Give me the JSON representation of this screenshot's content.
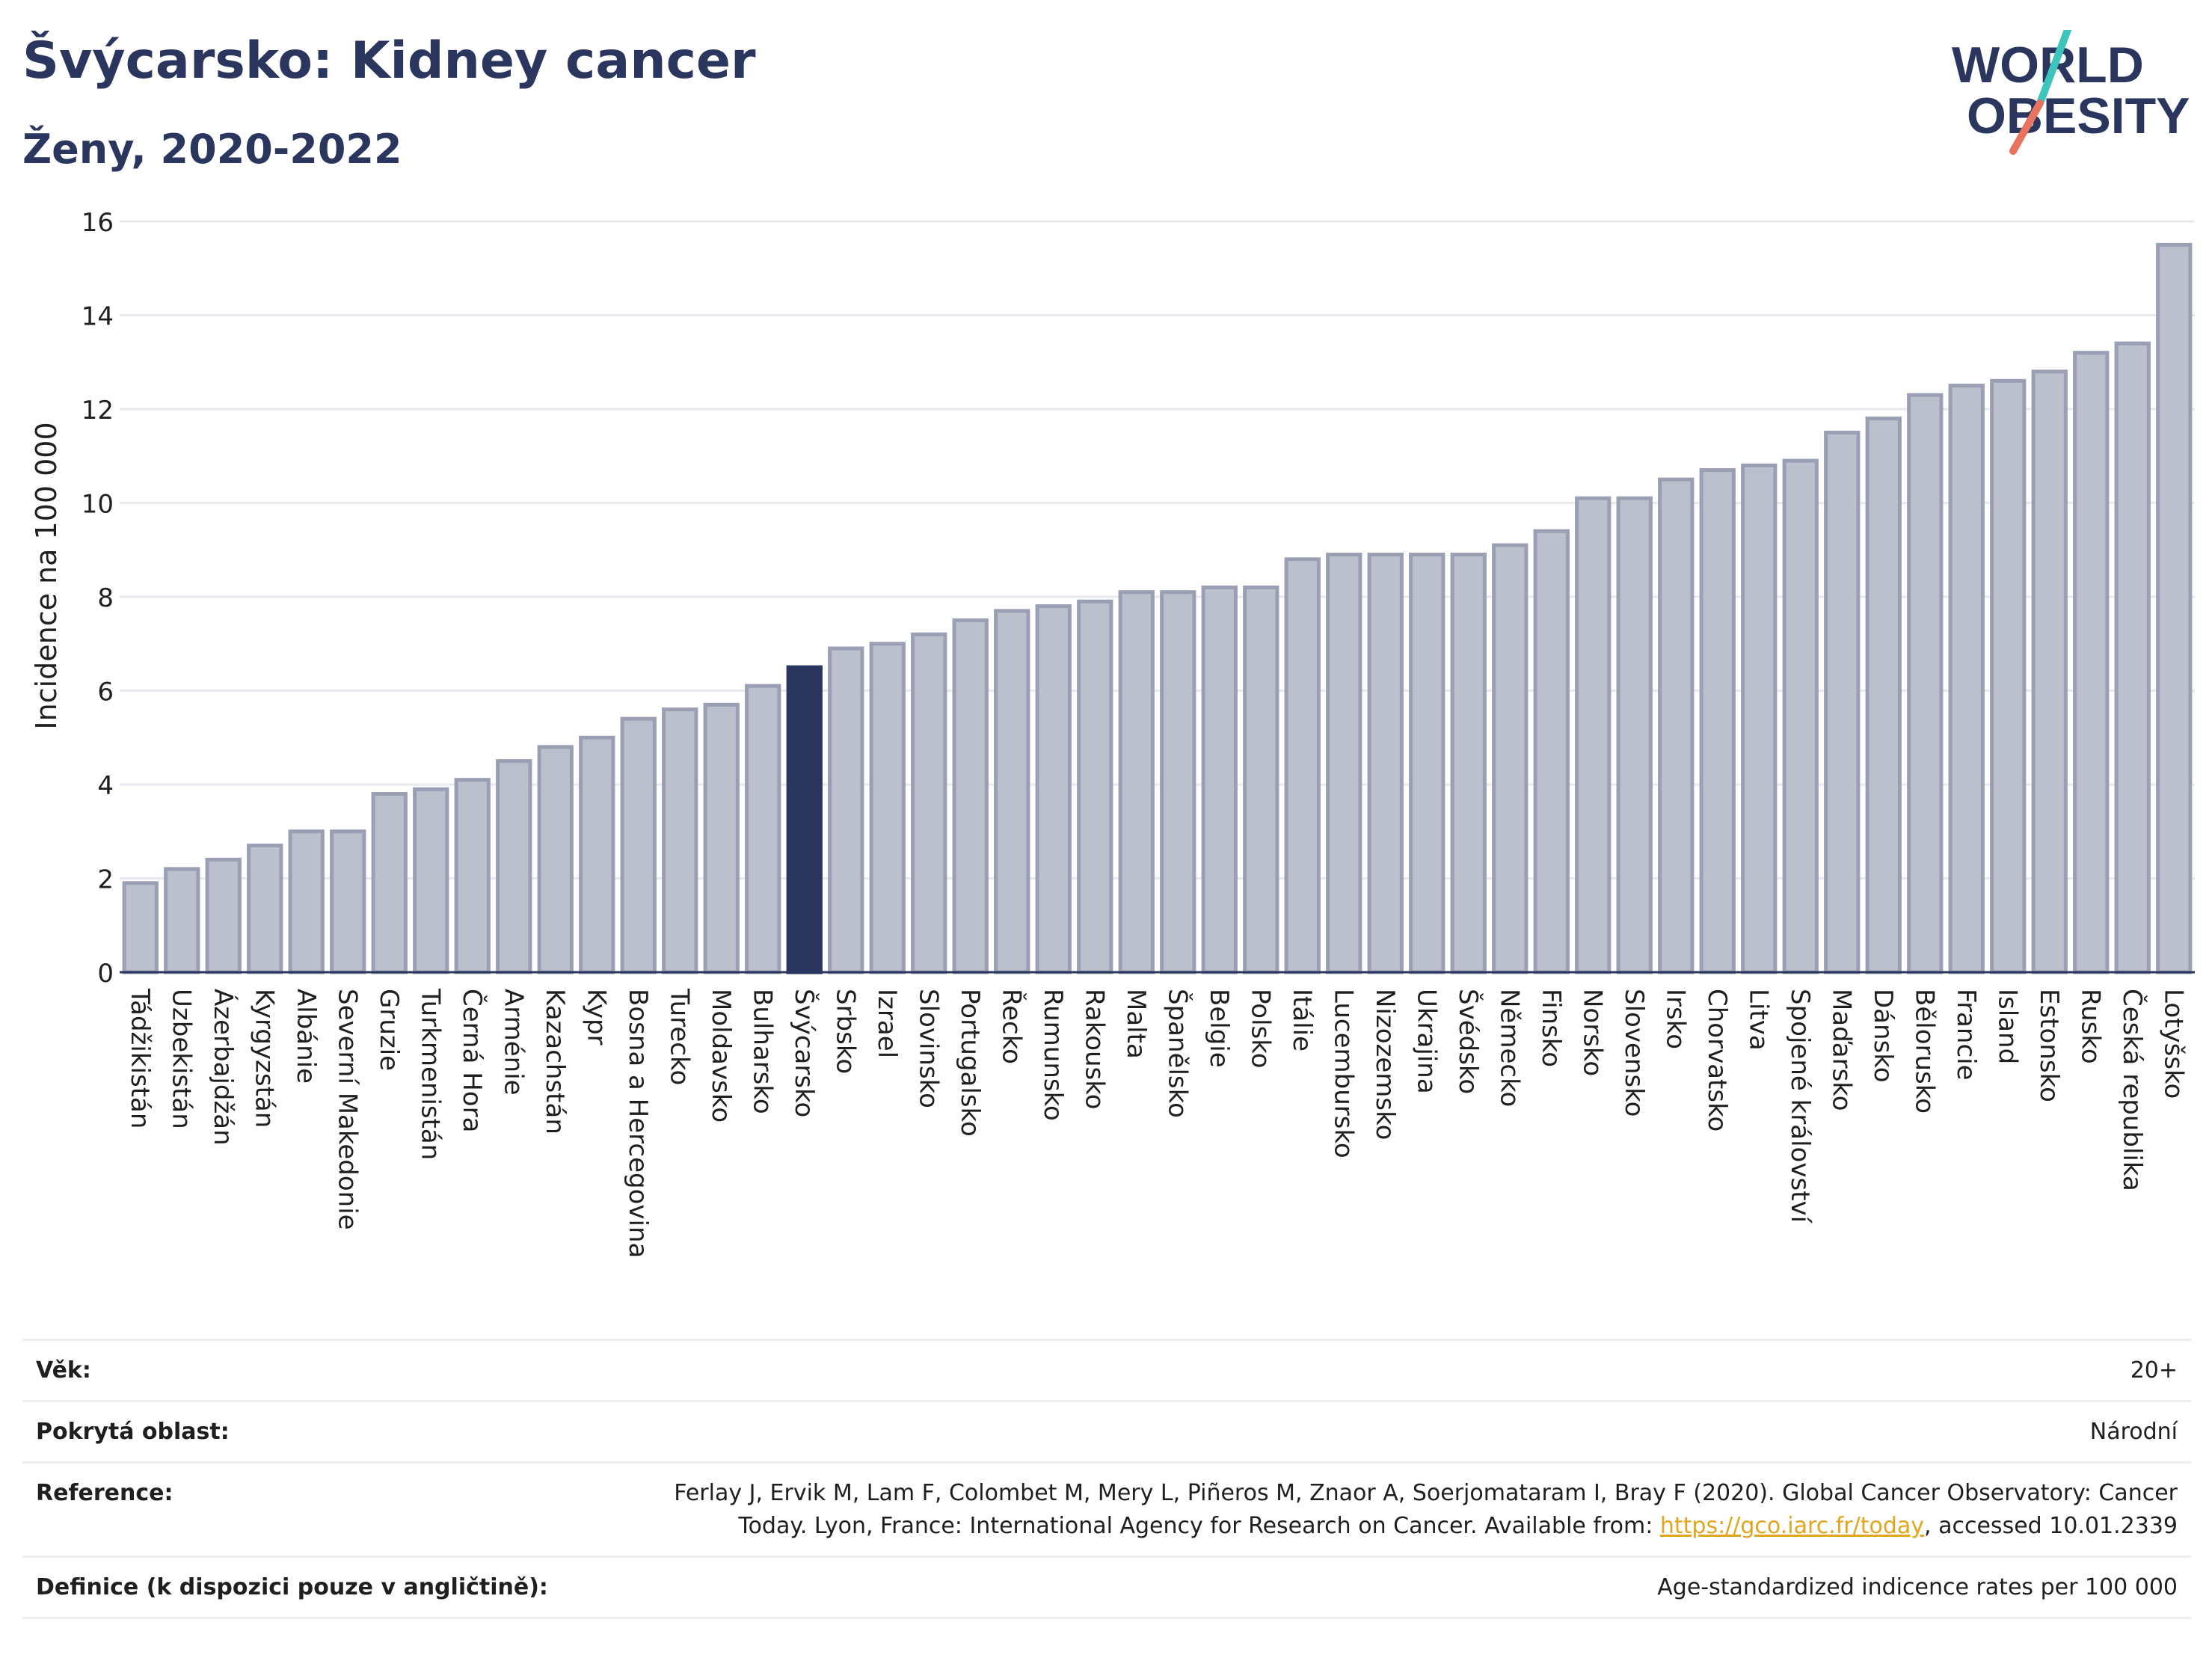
{
  "header": {
    "title": "Švýcarsko: Kidney cancer",
    "subtitle": "Ženy, 2020-2022"
  },
  "logo": {
    "line1": "WORLD",
    "line2": "OBESITY"
  },
  "colors": {
    "bar_default": "#bcc0cc",
    "bar_default_border": "#9a9fb4",
    "bar_highlight": "#2b365e",
    "title": "#2b365e",
    "grid": "#e8e9ee",
    "logo_teal": "#3cc4bd",
    "logo_red": "#e8735f"
  },
  "chart_data": {
    "type": "bar",
    "title": "Švýcarsko: Kidney cancer",
    "subtitle": "Ženy, 2020-2022",
    "xlabel": "",
    "ylabel": "Incidence na 100 000",
    "ylim": [
      0,
      16
    ],
    "yticks": [
      0,
      2,
      4,
      6,
      8,
      10,
      12,
      14,
      16
    ],
    "grid": true,
    "highlight": "Švýcarsko",
    "categories": [
      "Tádžikistán",
      "Uzbekistán",
      "Ázerbajdžán",
      "Kyrgyzstán",
      "Albánie",
      "Severní Makedonie",
      "Gruzie",
      "Turkmenistán",
      "Černá Hora",
      "Arménie",
      "Kazachstán",
      "Kypr",
      "Bosna a Hercegovina",
      "Turecko",
      "Moldavsko",
      "Bulharsko",
      "Švýcarsko",
      "Srbsko",
      "Izrael",
      "Slovinsko",
      "Portugalsko",
      "Řecko",
      "Rumunsko",
      "Rakousko",
      "Malta",
      "Španělsko",
      "Belgie",
      "Polsko",
      "Itálie",
      "Lucembursko",
      "Nizozemsko",
      "Ukrajina",
      "Švédsko",
      "Německo",
      "Finsko",
      "Norsko",
      "Slovensko",
      "Irsko",
      "Chorvatsko",
      "Litva",
      "Spojené království",
      "Maďarsko",
      "Dánsko",
      "Bělorusko",
      "Francie",
      "Island",
      "Estonsko",
      "Rusko",
      "Česká republika",
      "Lotyšsko"
    ],
    "values": [
      1.9,
      2.2,
      2.4,
      2.7,
      3.0,
      3.0,
      3.8,
      3.9,
      4.1,
      4.5,
      4.8,
      5.0,
      5.4,
      5.6,
      5.7,
      6.1,
      6.5,
      6.9,
      7.0,
      7.2,
      7.5,
      7.7,
      7.8,
      7.9,
      8.1,
      8.1,
      8.2,
      8.2,
      8.8,
      8.9,
      8.9,
      8.9,
      8.9,
      9.1,
      9.4,
      10.1,
      10.1,
      10.5,
      10.7,
      10.8,
      10.9,
      11.5,
      11.8,
      12.3,
      12.5,
      12.6,
      12.8,
      13.2,
      13.4,
      15.5
    ]
  },
  "info": {
    "age_label": "Věk:",
    "age_value": "20+",
    "coverage_label": "Pokrytá oblast:",
    "coverage_value": "Národní",
    "reference_label": "Reference:",
    "reference_text_1": "Ferlay J, Ervik M, Lam F, Colombet M, Mery L, Piñeros M, Znaor A, Soerjomataram I, Bray F (2020). Global Cancer Observatory: Cancer",
    "reference_text_2": "Today. Lyon, France: International Agency for Research on Cancer. Available from: ",
    "reference_link": "https://gco.iarc.fr/today",
    "reference_text_3": ", accessed 10.01.2339",
    "definition_label": "Definice (k dispozici pouze v angličtině):",
    "definition_value": "Age-standardized indicence rates per 100 000"
  }
}
